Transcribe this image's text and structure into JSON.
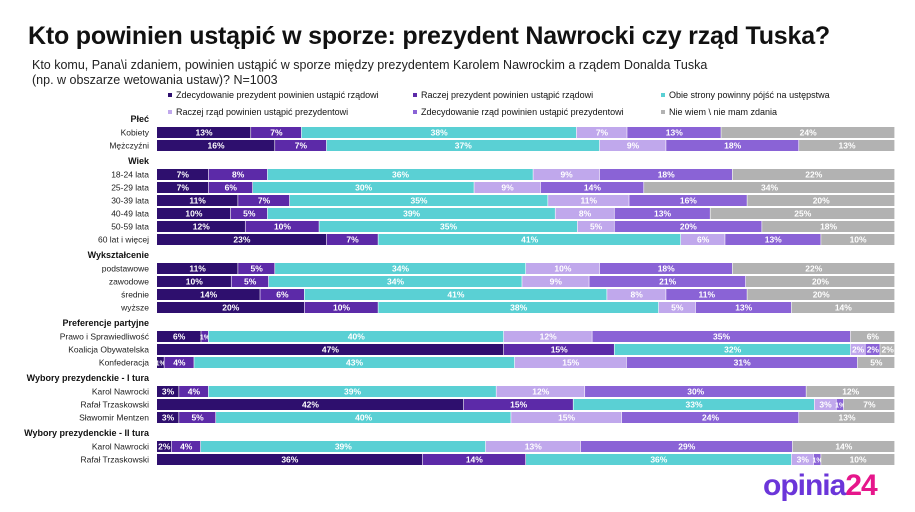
{
  "header": {
    "title": "Kto powinien ustąpić w sporze: prezydent Nawrocki czy rząd Tuska?",
    "subtitle_line1": "Kto komu, Pana\\i zdaniem, powinien ustąpić w sporze między prezydentem Karolem Nawrockim a rządem Donalda Tuska",
    "subtitle_line2": "(np. w obszarze wetowania ustaw)? N=1003"
  },
  "logo": {
    "part1": "opinia",
    "part2": "24"
  },
  "chart_data": {
    "type": "bar",
    "orientation": "horizontal-stacked-100",
    "title": "Kto powinien ustąpić w sporze: prezydent Nawrocki czy rząd Tuska?",
    "series": [
      {
        "name": "Zdecydowanie prezydent powinien ustąpić rządowi",
        "color": "#2e0f6e"
      },
      {
        "name": "Raczej prezydent powinien ustąpić rządowi",
        "color": "#5c2aa8"
      },
      {
        "name": "Obie strony powinny pójść na ustępstwa",
        "color": "#5ad0d4"
      },
      {
        "name": "Raczej rząd powinien ustąpić prezydentowi",
        "color": "#c0a8ec"
      },
      {
        "name": "Zdecydowanie rząd powinien ustąpić prezydentowi",
        "color": "#8a63d6"
      },
      {
        "name": "Nie wiem \\ nie mam zdania",
        "color": "#b2b2b2"
      }
    ],
    "groups": [
      {
        "name": "Płeć",
        "rows": [
          {
            "label": "Kobiety",
            "values": [
              13,
              7,
              38,
              7,
              13,
              24
            ],
            "labels": [
              "13%",
              "7%",
              "38%",
              "7%",
              "13%",
              "24%"
            ]
          },
          {
            "label": "Mężczyźni",
            "values": [
              16,
              7,
              37,
              9,
              18,
              13
            ],
            "labels": [
              "16%",
              "7%",
              "37%",
              "9%",
              "18%",
              "13%"
            ]
          }
        ]
      },
      {
        "name": "Wiek",
        "rows": [
          {
            "label": "18-24 lata",
            "values": [
              7,
              8,
              36,
              9,
              18,
              22
            ],
            "labels": [
              "7%",
              "8%",
              "36%",
              "9%",
              "18%",
              "22%"
            ]
          },
          {
            "label": "25-29 lata",
            "values": [
              7,
              6,
              30,
              9,
              14,
              34
            ],
            "labels": [
              "7%",
              "6%",
              "30%",
              "9%",
              "14%",
              "34%"
            ]
          },
          {
            "label": "30-39 lata",
            "values": [
              11,
              7,
              35,
              11,
              16,
              20
            ],
            "labels": [
              "11%",
              "7%",
              "35%",
              "11%",
              "16%",
              "20%"
            ]
          },
          {
            "label": "40-49 lata",
            "values": [
              10,
              5,
              39,
              8,
              13,
              25
            ],
            "labels": [
              "10%",
              "5%",
              "39%",
              "8%",
              "13%",
              "25%"
            ]
          },
          {
            "label": "50-59 lata",
            "values": [
              12,
              10,
              35,
              5,
              20,
              18
            ],
            "labels": [
              "12%",
              "10%",
              "35%",
              "5%",
              "20%",
              "18%"
            ]
          },
          {
            "label": "60 lat i więcej",
            "values": [
              23,
              7,
              41,
              6,
              13,
              10
            ],
            "labels": [
              "23%",
              "7%",
              "41%",
              "6%",
              "13%",
              "10%"
            ]
          }
        ]
      },
      {
        "name": "Wykształcenie",
        "rows": [
          {
            "label": "podstawowe",
            "values": [
              11,
              5,
              34,
              10,
              18,
              22
            ],
            "labels": [
              "11%",
              "5%",
              "34%",
              "10%",
              "18%",
              "22%"
            ]
          },
          {
            "label": "zawodowe",
            "values": [
              10,
              5,
              34,
              9,
              21,
              20
            ],
            "labels": [
              "10%",
              "5%",
              "34%",
              "9%",
              "21%",
              "20%"
            ]
          },
          {
            "label": "średnie",
            "values": [
              14,
              6,
              41,
              8,
              11,
              20
            ],
            "labels": [
              "14%",
              "6%",
              "41%",
              "8%",
              "11%",
              "20%"
            ]
          },
          {
            "label": "wyższe",
            "values": [
              20,
              10,
              38,
              5,
              13,
              14
            ],
            "labels": [
              "20%",
              "10%",
              "38%",
              "5%",
              "13%",
              "14%"
            ]
          }
        ]
      },
      {
        "name": "Preferencje partyjne",
        "rows": [
          {
            "label": "Prawo i Sprawiedliwość",
            "values": [
              6,
              1,
              40,
              12,
              35,
              6
            ],
            "labels": [
              "6%",
              "1%",
              "40%",
              "12%",
              "35%",
              "6%"
            ]
          },
          {
            "label": "Koalicja Obywatelska",
            "values": [
              47,
              15,
              32,
              2,
              2,
              2
            ],
            "labels": [
              "47%",
              "15%",
              "32%",
              "2%",
              "2%",
              "2%"
            ]
          },
          {
            "label": "Konfederacja",
            "values": [
              1,
              4,
              43,
              15,
              31,
              5
            ],
            "labels": [
              "1%",
              "4%",
              "43%",
              "15%",
              "31%",
              "5%"
            ]
          }
        ]
      },
      {
        "name": "Wybory prezydenckie - I tura",
        "rows": [
          {
            "label": "Karol Nawrocki",
            "values": [
              3,
              4,
              39,
              12,
              30,
              12
            ],
            "labels": [
              "3%",
              "4%",
              "39%",
              "12%",
              "30%",
              "12%"
            ]
          },
          {
            "label": "Rafał Trzaskowski",
            "values": [
              42,
              15,
              33,
              3,
              1,
              7
            ],
            "labels": [
              "42%",
              "15%",
              "33%",
              "3%",
              "1%",
              "7%"
            ]
          },
          {
            "label": "Sławomir Mentzen",
            "values": [
              3,
              5,
              40,
              15,
              24,
              13
            ],
            "labels": [
              "3%",
              "5%",
              "40%",
              "15%",
              "24%",
              "13%"
            ]
          }
        ]
      },
      {
        "name": "Wybory prezydenckie - II tura",
        "rows": [
          {
            "label": "Karol Nawrocki",
            "values": [
              2,
              4,
              39,
              13,
              29,
              14
            ],
            "labels": [
              "2%",
              "4%",
              "39%",
              "13%",
              "29%",
              "14%"
            ]
          },
          {
            "label": "Rafał Trzaskowski",
            "values": [
              36,
              14,
              36,
              3,
              1,
              10
            ],
            "labels": [
              "36%",
              "14%",
              "36%",
              "3%",
              "1%",
              "10%"
            ]
          }
        ]
      }
    ]
  }
}
